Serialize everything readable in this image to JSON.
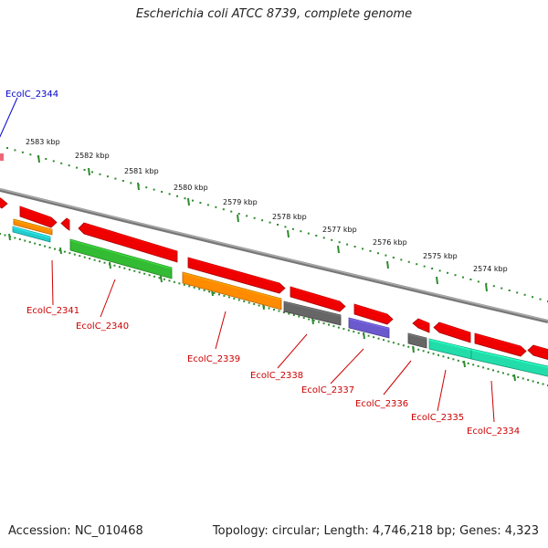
{
  "title": "Escherichia coli ATCC 8739, complete genome",
  "footer": {
    "accession": "Accession: NC_010468",
    "summary": "Topology: circular; Length: 4,746,218 bp; Genes: 4,323"
  },
  "scale": {
    "unit": "kbp",
    "labels": [
      "2583 kbp",
      "2582 kbp",
      "2581 kbp",
      "2580 kbp",
      "2579 kbp",
      "2578 kbp",
      "2577 kbp",
      "2576 kbp",
      "2575 kbp",
      "2574 kbp"
    ]
  },
  "genes": [
    {
      "id": "EcolC_2344",
      "color": "#0000cc"
    },
    {
      "id": "EcolC_2341",
      "color": "#cc0000"
    },
    {
      "id": "EcolC_2340",
      "color": "#cc0000"
    },
    {
      "id": "EcolC_2339",
      "color": "#cc0000"
    },
    {
      "id": "EcolC_2338",
      "color": "#cc0000"
    },
    {
      "id": "EcolC_2337",
      "color": "#cc0000"
    },
    {
      "id": "EcolC_2336",
      "color": "#cc0000"
    },
    {
      "id": "EcolC_2335",
      "color": "#cc0000"
    },
    {
      "id": "EcolC_2334",
      "color": "#cc0000"
    }
  ],
  "colors": {
    "backbone": "#888888",
    "ticks": "#2e8b2e",
    "cds_forward": "#ee0000",
    "cds_reverse_green": "#33bb33",
    "orange": "#ff8c00",
    "cyan": "#22cccc",
    "dark_gray": "#666666",
    "purple": "#6a5acd",
    "teal": "#22ddaa"
  }
}
